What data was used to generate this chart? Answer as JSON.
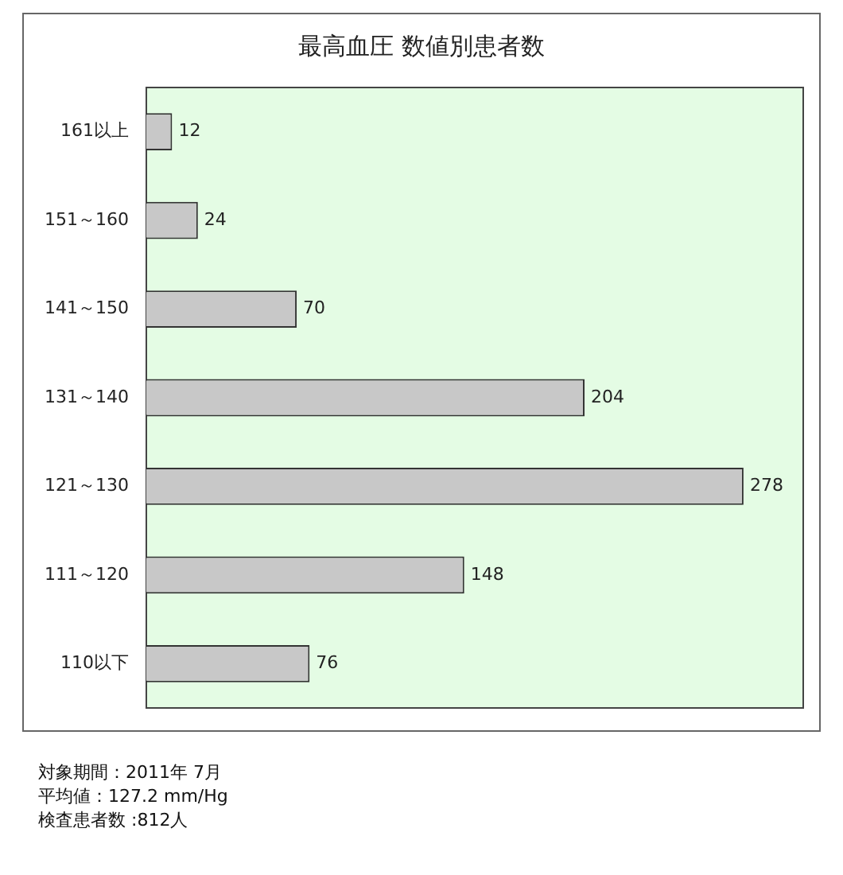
{
  "chart_data": {
    "type": "bar",
    "orientation": "horizontal",
    "title": "最高血圧 数値別患者数",
    "categories": [
      "161以上",
      "151～160",
      "141～150",
      "131～140",
      "121～130",
      "111～120",
      "110以下"
    ],
    "values": [
      12,
      24,
      70,
      204,
      278,
      148,
      76
    ],
    "color": "#c8c8c8",
    "data_labels": true,
    "legend": false,
    "annotations": [
      "対象期間：2011年 7月",
      "平均値：127.2 mm/Hg",
      "検査患者数 :812人"
    ]
  }
}
